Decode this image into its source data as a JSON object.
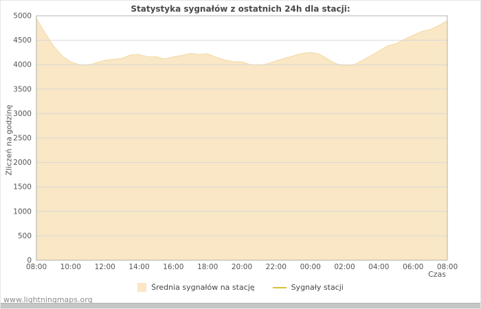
{
  "page": {
    "watermark": "www.lightningmaps.org"
  },
  "chart_data": {
    "type": "area",
    "title": "Statystyka sygnałów z ostatnich 24h dla stacji:",
    "xlabel": "Czas",
    "ylabel": "Zliczeń na godzinę",
    "ylim": [
      0,
      5000
    ],
    "y_tick_step": 500,
    "x_tick_labels": [
      "08:00",
      "10:00",
      "12:00",
      "14:00",
      "16:00",
      "18:00",
      "20:00",
      "22:00",
      "00:00",
      "02:00",
      "04:00",
      "06:00",
      "08:00"
    ],
    "x_interval_minutes": 30,
    "grid": true,
    "legend_position": "bottom",
    "colors": {
      "grid": "#d8d8d8",
      "frame": "#b0b0b0",
      "title_text": "#4a4a4a",
      "tick_text": "#545454"
    },
    "series": [
      {
        "name": "Średnia sygnałów na stację",
        "type": "area",
        "color": "#f9e7c5",
        "edge_color": "#f2d9a4",
        "values": [
          4950,
          4650,
          4380,
          4180,
          4060,
          4000,
          3990,
          4040,
          4090,
          4110,
          4130,
          4200,
          4210,
          4160,
          4160,
          4120,
          4160,
          4190,
          4230,
          4210,
          4220,
          4150,
          4100,
          4060,
          4060,
          4000,
          3990,
          4020,
          4080,
          4130,
          4180,
          4230,
          4250,
          4220,
          4120,
          4020,
          3980,
          3990,
          4080,
          4180,
          4280,
          4380,
          4430,
          4520,
          4600,
          4680,
          4720,
          4800,
          4900
        ]
      },
      {
        "name": "Sygnały stacji",
        "type": "line",
        "color": "#ddbf2e",
        "values": []
      }
    ]
  }
}
